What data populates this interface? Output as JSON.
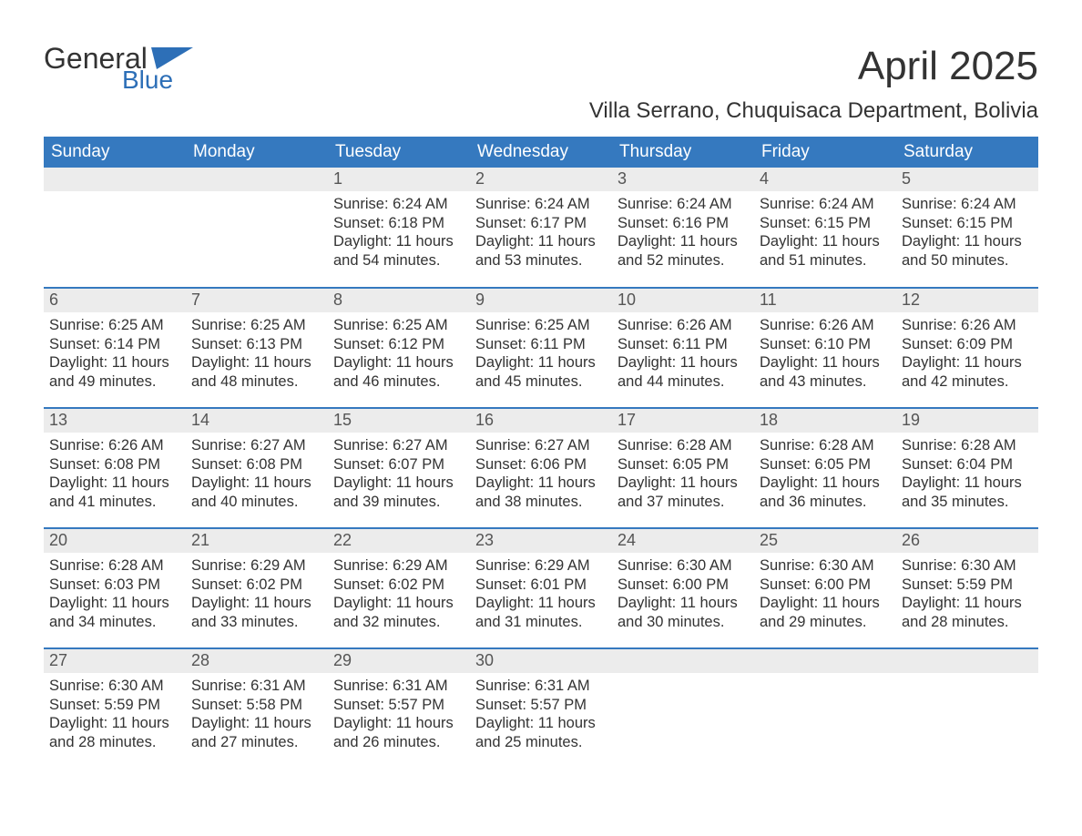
{
  "logo": {
    "top": "General",
    "bottom": "Blue"
  },
  "title": "April 2025",
  "location": "Villa Serrano, Chuquisaca Department, Bolivia",
  "colors": {
    "header_bg": "#3579bf",
    "header_fg": "#ffffff",
    "row_separator": "#3579bf",
    "daynum_bg": "#ececec",
    "daynum_fg": "#555555",
    "text": "#333333",
    "logo_blue": "#2d6fb7",
    "background": "#ffffff"
  },
  "day_names": [
    "Sunday",
    "Monday",
    "Tuesday",
    "Wednesday",
    "Thursday",
    "Friday",
    "Saturday"
  ],
  "weeks": [
    [
      null,
      null,
      {
        "n": "1",
        "sr": "Sunrise: 6:24 AM",
        "ss": "Sunset: 6:18 PM",
        "d1": "Daylight: 11 hours",
        "d2": "and 54 minutes."
      },
      {
        "n": "2",
        "sr": "Sunrise: 6:24 AM",
        "ss": "Sunset: 6:17 PM",
        "d1": "Daylight: 11 hours",
        "d2": "and 53 minutes."
      },
      {
        "n": "3",
        "sr": "Sunrise: 6:24 AM",
        "ss": "Sunset: 6:16 PM",
        "d1": "Daylight: 11 hours",
        "d2": "and 52 minutes."
      },
      {
        "n": "4",
        "sr": "Sunrise: 6:24 AM",
        "ss": "Sunset: 6:15 PM",
        "d1": "Daylight: 11 hours",
        "d2": "and 51 minutes."
      },
      {
        "n": "5",
        "sr": "Sunrise: 6:24 AM",
        "ss": "Sunset: 6:15 PM",
        "d1": "Daylight: 11 hours",
        "d2": "and 50 minutes."
      }
    ],
    [
      {
        "n": "6",
        "sr": "Sunrise: 6:25 AM",
        "ss": "Sunset: 6:14 PM",
        "d1": "Daylight: 11 hours",
        "d2": "and 49 minutes."
      },
      {
        "n": "7",
        "sr": "Sunrise: 6:25 AM",
        "ss": "Sunset: 6:13 PM",
        "d1": "Daylight: 11 hours",
        "d2": "and 48 minutes."
      },
      {
        "n": "8",
        "sr": "Sunrise: 6:25 AM",
        "ss": "Sunset: 6:12 PM",
        "d1": "Daylight: 11 hours",
        "d2": "and 46 minutes."
      },
      {
        "n": "9",
        "sr": "Sunrise: 6:25 AM",
        "ss": "Sunset: 6:11 PM",
        "d1": "Daylight: 11 hours",
        "d2": "and 45 minutes."
      },
      {
        "n": "10",
        "sr": "Sunrise: 6:26 AM",
        "ss": "Sunset: 6:11 PM",
        "d1": "Daylight: 11 hours",
        "d2": "and 44 minutes."
      },
      {
        "n": "11",
        "sr": "Sunrise: 6:26 AM",
        "ss": "Sunset: 6:10 PM",
        "d1": "Daylight: 11 hours",
        "d2": "and 43 minutes."
      },
      {
        "n": "12",
        "sr": "Sunrise: 6:26 AM",
        "ss": "Sunset: 6:09 PM",
        "d1": "Daylight: 11 hours",
        "d2": "and 42 minutes."
      }
    ],
    [
      {
        "n": "13",
        "sr": "Sunrise: 6:26 AM",
        "ss": "Sunset: 6:08 PM",
        "d1": "Daylight: 11 hours",
        "d2": "and 41 minutes."
      },
      {
        "n": "14",
        "sr": "Sunrise: 6:27 AM",
        "ss": "Sunset: 6:08 PM",
        "d1": "Daylight: 11 hours",
        "d2": "and 40 minutes."
      },
      {
        "n": "15",
        "sr": "Sunrise: 6:27 AM",
        "ss": "Sunset: 6:07 PM",
        "d1": "Daylight: 11 hours",
        "d2": "and 39 minutes."
      },
      {
        "n": "16",
        "sr": "Sunrise: 6:27 AM",
        "ss": "Sunset: 6:06 PM",
        "d1": "Daylight: 11 hours",
        "d2": "and 38 minutes."
      },
      {
        "n": "17",
        "sr": "Sunrise: 6:28 AM",
        "ss": "Sunset: 6:05 PM",
        "d1": "Daylight: 11 hours",
        "d2": "and 37 minutes."
      },
      {
        "n": "18",
        "sr": "Sunrise: 6:28 AM",
        "ss": "Sunset: 6:05 PM",
        "d1": "Daylight: 11 hours",
        "d2": "and 36 minutes."
      },
      {
        "n": "19",
        "sr": "Sunrise: 6:28 AM",
        "ss": "Sunset: 6:04 PM",
        "d1": "Daylight: 11 hours",
        "d2": "and 35 minutes."
      }
    ],
    [
      {
        "n": "20",
        "sr": "Sunrise: 6:28 AM",
        "ss": "Sunset: 6:03 PM",
        "d1": "Daylight: 11 hours",
        "d2": "and 34 minutes."
      },
      {
        "n": "21",
        "sr": "Sunrise: 6:29 AM",
        "ss": "Sunset: 6:02 PM",
        "d1": "Daylight: 11 hours",
        "d2": "and 33 minutes."
      },
      {
        "n": "22",
        "sr": "Sunrise: 6:29 AM",
        "ss": "Sunset: 6:02 PM",
        "d1": "Daylight: 11 hours",
        "d2": "and 32 minutes."
      },
      {
        "n": "23",
        "sr": "Sunrise: 6:29 AM",
        "ss": "Sunset: 6:01 PM",
        "d1": "Daylight: 11 hours",
        "d2": "and 31 minutes."
      },
      {
        "n": "24",
        "sr": "Sunrise: 6:30 AM",
        "ss": "Sunset: 6:00 PM",
        "d1": "Daylight: 11 hours",
        "d2": "and 30 minutes."
      },
      {
        "n": "25",
        "sr": "Sunrise: 6:30 AM",
        "ss": "Sunset: 6:00 PM",
        "d1": "Daylight: 11 hours",
        "d2": "and 29 minutes."
      },
      {
        "n": "26",
        "sr": "Sunrise: 6:30 AM",
        "ss": "Sunset: 5:59 PM",
        "d1": "Daylight: 11 hours",
        "d2": "and 28 minutes."
      }
    ],
    [
      {
        "n": "27",
        "sr": "Sunrise: 6:30 AM",
        "ss": "Sunset: 5:59 PM",
        "d1": "Daylight: 11 hours",
        "d2": "and 28 minutes."
      },
      {
        "n": "28",
        "sr": "Sunrise: 6:31 AM",
        "ss": "Sunset: 5:58 PM",
        "d1": "Daylight: 11 hours",
        "d2": "and 27 minutes."
      },
      {
        "n": "29",
        "sr": "Sunrise: 6:31 AM",
        "ss": "Sunset: 5:57 PM",
        "d1": "Daylight: 11 hours",
        "d2": "and 26 minutes."
      },
      {
        "n": "30",
        "sr": "Sunrise: 6:31 AM",
        "ss": "Sunset: 5:57 PM",
        "d1": "Daylight: 11 hours",
        "d2": "and 25 minutes."
      },
      null,
      null,
      null
    ]
  ]
}
